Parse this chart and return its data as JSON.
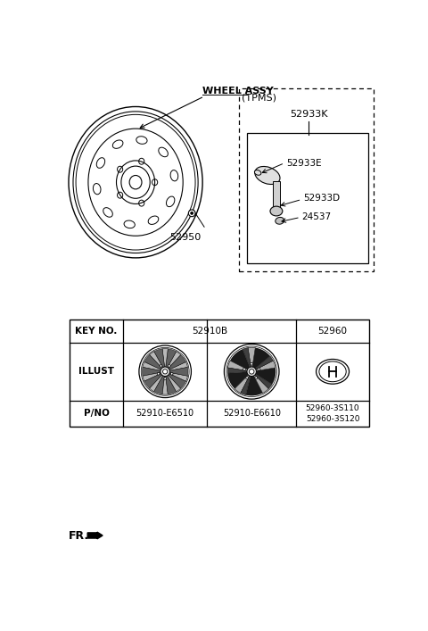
{
  "bg_color": "#ffffff",
  "line_color": "#000000",
  "wheel_assy_label": "WHEEL ASSY",
  "part_52950": "52950",
  "tpms_label": "(TPMS)",
  "part_52933K": "52933K",
  "part_52933E": "52933E",
  "part_52933D": "52933D",
  "part_24537": "24537",
  "table_key_no": "KEY NO.",
  "table_52910B": "52910B",
  "table_52960": "52960",
  "table_illust": "ILLUST",
  "table_pno": "P/NO",
  "pno_E6510": "52910-E6510",
  "pno_E6610": "52910-E6610",
  "pno_52960": "52960-3S110\n52960-3S120",
  "fr_label": "FR.",
  "dark_gray": "#555555",
  "mid_gray": "#999999",
  "light_gray": "#cccccc"
}
